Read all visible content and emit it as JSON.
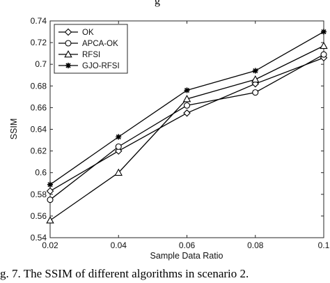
{
  "top_text": "g",
  "caption": "g. 7.   The SSIM of different algorithms in scenario 2.",
  "chart_data": {
    "type": "line",
    "title": "",
    "xlabel": "Sample Data Ratio",
    "ylabel": "SSIM",
    "x": [
      0.02,
      0.04,
      0.06,
      0.08,
      0.1
    ],
    "x_tick_labels": [
      "0.02",
      "0.04",
      "0.06",
      "0.08",
      "0.1"
    ],
    "y_tick_labels": [
      "0.54",
      "0.56",
      "0.58",
      "0.6",
      "0.62",
      "0.64",
      "0.66",
      "0.68",
      "0.7",
      "0.72",
      "0.74"
    ],
    "xlim": [
      0.02,
      0.1
    ],
    "ylim": [
      0.54,
      0.74
    ],
    "grid": false,
    "legend_position": "top-left",
    "series": [
      {
        "name": "OK",
        "marker": "diamond",
        "values": [
          0.583,
          0.62,
          0.655,
          0.682,
          0.706
        ]
      },
      {
        "name": "APCA-OK",
        "marker": "circle",
        "values": [
          0.575,
          0.624,
          0.662,
          0.674,
          0.709
        ]
      },
      {
        "name": "RFSI",
        "marker": "triangle",
        "values": [
          0.556,
          0.6,
          0.668,
          0.686,
          0.717
        ]
      },
      {
        "name": "GJO-RFSI",
        "marker": "star",
        "values": [
          0.589,
          0.633,
          0.676,
          0.694,
          0.73
        ]
      }
    ],
    "colors": {
      "line": "#000000",
      "axis": "#262626",
      "background": "#ffffff"
    }
  }
}
